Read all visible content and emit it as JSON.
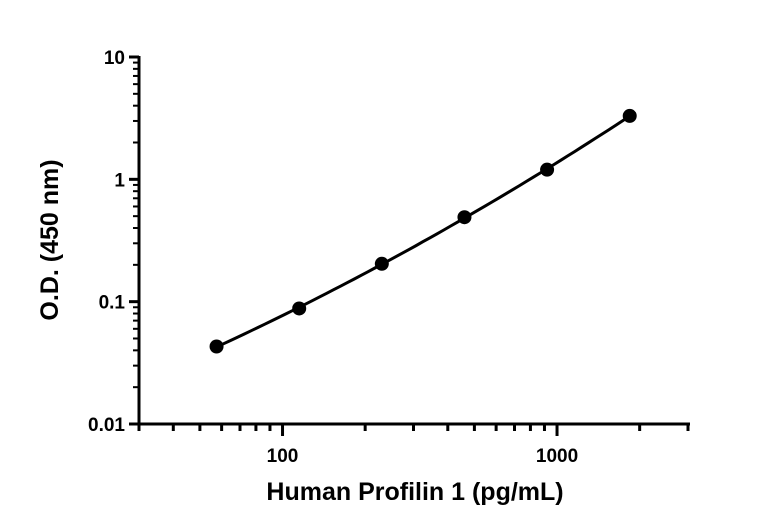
{
  "chart_data": {
    "type": "scatter",
    "title": "",
    "xlabel": "Human Profilin 1 (pg/mL)",
    "ylabel": "O.D. (450 nm)",
    "xscale": "log",
    "yscale": "log",
    "xlim": [
      30,
      3000
    ],
    "ylim": [
      0.01,
      10
    ],
    "xticks": [
      {
        "v": 100,
        "label": "100"
      },
      {
        "v": 1000,
        "label": "1000"
      }
    ],
    "yticks": [
      {
        "v": 0.01,
        "label": "0.01"
      },
      {
        "v": 0.1,
        "label": "0.1"
      },
      {
        "v": 1,
        "label": "1"
      },
      {
        "v": 10,
        "label": "10"
      }
    ],
    "grid": false,
    "fit_line": true,
    "points": [
      {
        "x": 57.5,
        "y": 0.043
      },
      {
        "x": 115,
        "y": 0.088
      },
      {
        "x": 230,
        "y": 0.204
      },
      {
        "x": 460,
        "y": 0.49
      },
      {
        "x": 920,
        "y": 1.2
      },
      {
        "x": 1840,
        "y": 3.3
      }
    ],
    "color": "#000000"
  }
}
